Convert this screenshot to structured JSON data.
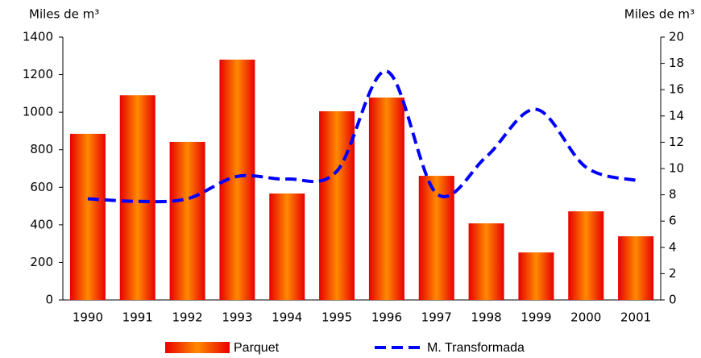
{
  "chart_data": {
    "type": "bar-line",
    "y_label": "Miles de m³",
    "y2_label": "Miles de m³",
    "categories": [
      "1990",
      "1991",
      "1992",
      "1993",
      "1994",
      "1995",
      "1996",
      "1997",
      "1998",
      "1999",
      "2000",
      "2001"
    ],
    "series": [
      {
        "name": "Parquet",
        "color": "#ff2a00",
        "values": [
          885,
          1090,
          842,
          1280,
          567,
          1005,
          1078,
          661,
          408,
          253,
          472,
          339
        ]
      },
      {
        "name": "M. Transformada",
        "color": "#0000ff",
        "axis": "y2",
        "values": [
          7.7,
          7.5,
          7.7,
          9.4,
          9.2,
          9.8,
          17.4,
          8.1,
          10.9,
          14.5,
          10.1,
          9.1
        ]
      }
    ],
    "ylim": [
      0,
      1400
    ],
    "yticks": [
      0,
      200,
      400,
      600,
      800,
      1000,
      1200,
      1400
    ],
    "y2lim": [
      0,
      20
    ],
    "y2ticks": [
      0,
      2,
      4,
      6,
      8,
      10,
      12,
      14,
      16,
      18,
      20
    ]
  }
}
